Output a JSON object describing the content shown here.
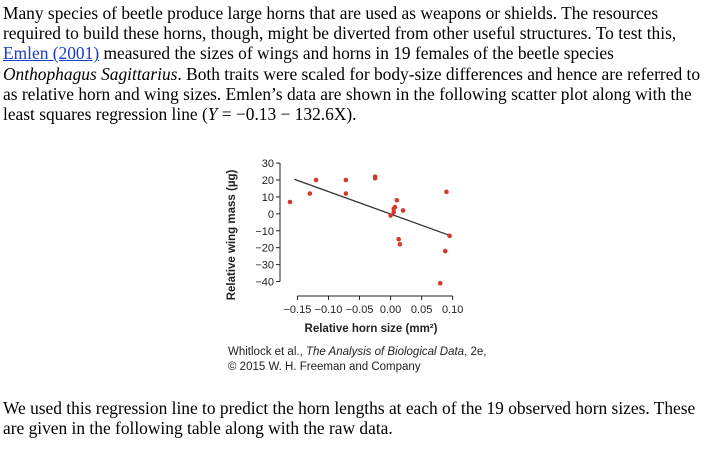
{
  "intro": {
    "before_link": "Many species of beetle produce large horns that are used as weapons or shields. The resources required to build these horns, though, might be diverted from other useful structures. To test this, ",
    "link": "Emlen (2001)",
    "middle": " measured the sizes of wings and horns in 19 females of the beetle species ",
    "species": "Onthophagus Sagittarius",
    "after_species": ". Both traits were scaled for body-size differences and hence are referred to as relative horn and wing sizes. Emlen’s data are shown in the following scatter plot along with the least squares regression line (",
    "y_var": "Y",
    "equation_mid": " = −0.13 − 132.6",
    "x_var": "X",
    "end": ")."
  },
  "chart_data": {
    "type": "scatter",
    "xlabel": "Relative horn size (mm²)",
    "ylabel": "Relative wing mass (µg)",
    "xlim": [
      -0.17,
      0.115
    ],
    "ylim": [
      -45,
      33
    ],
    "x_ticks": [
      -0.15,
      -0.1,
      -0.05,
      0.0,
      0.05,
      0.1
    ],
    "x_tick_labels": [
      "−0.15",
      "−0.10",
      "−0.05",
      "0.00",
      "0.05",
      "0.10"
    ],
    "y_ticks": [
      30,
      20,
      10,
      0,
      -10,
      -20,
      -30,
      -40
    ],
    "y_tick_labels": [
      "30",
      "20",
      "10",
      "0",
      "−10",
      "−20",
      "−30",
      "−40"
    ],
    "grid": false,
    "point_color": "#d23a2a",
    "line_color": "#333333",
    "regression": {
      "intercept": -0.13,
      "slope": -132.6,
      "x_range": [
        -0.155,
        0.098
      ]
    },
    "points": [
      {
        "x": -0.162,
        "y": 7
      },
      {
        "x": -0.13,
        "y": 12
      },
      {
        "x": -0.12,
        "y": 20
      },
      {
        "x": -0.072,
        "y": 20
      },
      {
        "x": -0.072,
        "y": 12
      },
      {
        "x": -0.025,
        "y": 22
      },
      {
        "x": -0.025,
        "y": 21
      },
      {
        "x": 0.0,
        "y": -1
      },
      {
        "x": 0.005,
        "y": 3
      },
      {
        "x": 0.005,
        "y": 1
      },
      {
        "x": 0.007,
        "y": 4
      },
      {
        "x": 0.01,
        "y": 8
      },
      {
        "x": 0.013,
        "y": -15
      },
      {
        "x": 0.015,
        "y": -18
      },
      {
        "x": 0.02,
        "y": 2
      },
      {
        "x": 0.08,
        "y": -41
      },
      {
        "x": 0.088,
        "y": -22
      },
      {
        "x": 0.09,
        "y": 13
      },
      {
        "x": 0.095,
        "y": -13
      }
    ]
  },
  "figure": {
    "credit_line1_prefix": "Whitlock et al., ",
    "credit_book": "The Analysis of Biological Data",
    "credit_line1_suffix": ", 2e,",
    "credit_line2": "© 2015 W. H. Freeman and Company"
  },
  "outro": {
    "text": "We used this regression line to predict the horn lengths at each of the 19 observed horn sizes. These are given in the following table along with the raw data."
  }
}
